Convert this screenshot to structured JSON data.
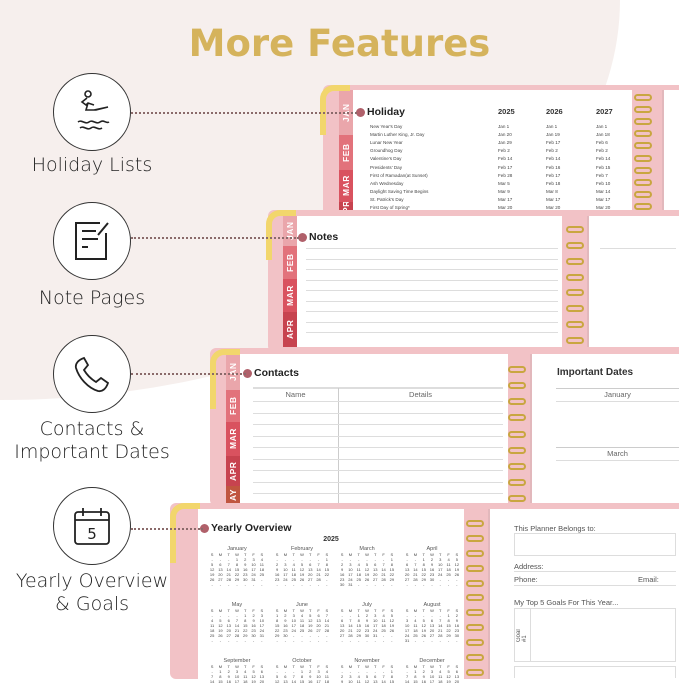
{
  "title": "More Features",
  "colors": {
    "title": "#d5b35c",
    "cover": "#f2c2c6",
    "ring": "#c9a640",
    "dot": "#b0606a"
  },
  "features": [
    {
      "label": "Holiday Lists",
      "icon": "jet-ski-icon"
    },
    {
      "label": "Note Pages",
      "icon": "note-icon"
    },
    {
      "label_line1": "Contacts &",
      "label_line2": "Important Dates",
      "icon": "phone-icon"
    },
    {
      "label_line1": "Yearly Overview",
      "label_line2": "& Goals",
      "icon": "calendar-icon",
      "icon_text": "5"
    }
  ],
  "tabs": [
    "JAN",
    "FEB",
    "MAR",
    "APR",
    "MAY"
  ],
  "tabs_partial": [
    "PR",
    "AY"
  ],
  "holiday": {
    "title": "Holiday",
    "years": [
      "2025",
      "2026",
      "2027"
    ],
    "rows": [
      [
        "New Year's Day",
        "Jan 1",
        "Jan 1",
        "Jan 1"
      ],
      [
        "Martin Luther King, Jr. Day",
        "Jan 20",
        "Jan 19",
        "Jan 18"
      ],
      [
        "Lunar New Year",
        "Jan 29",
        "Feb 17",
        "Feb 6"
      ],
      [
        "Groundhog Day",
        "Feb 2",
        "Feb 2",
        "Feb 2"
      ],
      [
        "Valentine's Day",
        "Feb 14",
        "Feb 14",
        "Feb 14"
      ],
      [
        "Presidents' Day",
        "Feb 17",
        "Feb 16",
        "Feb 15"
      ],
      [
        "First of Ramadan(at Sunset)",
        "Feb 28",
        "Feb 17",
        "Feb 7"
      ],
      [
        "Ash Wednesday",
        "Mar 5",
        "Feb 18",
        "Feb 10"
      ],
      [
        "Daylight Saving Time Begins",
        "Mar 9",
        "Mar 8",
        "Mar 14"
      ],
      [
        "St. Patrick's Day",
        "Mar 17",
        "Mar 17",
        "Mar 17"
      ],
      [
        "First Day of Spring*",
        "Mar 20",
        "Mar 20",
        "Mar 20"
      ]
    ]
  },
  "notes": {
    "title": "Notes"
  },
  "contacts": {
    "title": "Contacts",
    "col_name": "Name",
    "col_details": "Details"
  },
  "important_dates": {
    "title": "Important Dates",
    "months": [
      "January",
      "March"
    ]
  },
  "yearly": {
    "title": "Yearly Overview",
    "year": "2025",
    "weekdays": [
      "S",
      "M",
      "T",
      "W",
      "T",
      "F",
      "S"
    ],
    "months": [
      "January",
      "February",
      "March",
      "April",
      "May",
      "June",
      "July",
      "August",
      "September",
      "October",
      "November",
      "December"
    ]
  },
  "goals": {
    "belongs": "This Planner Belongs to:",
    "address": "Address:",
    "phone": "Phone:",
    "email": "Email:",
    "top5": "My Top 5 Goals For This Year...",
    "goal1": "Goal #1"
  }
}
